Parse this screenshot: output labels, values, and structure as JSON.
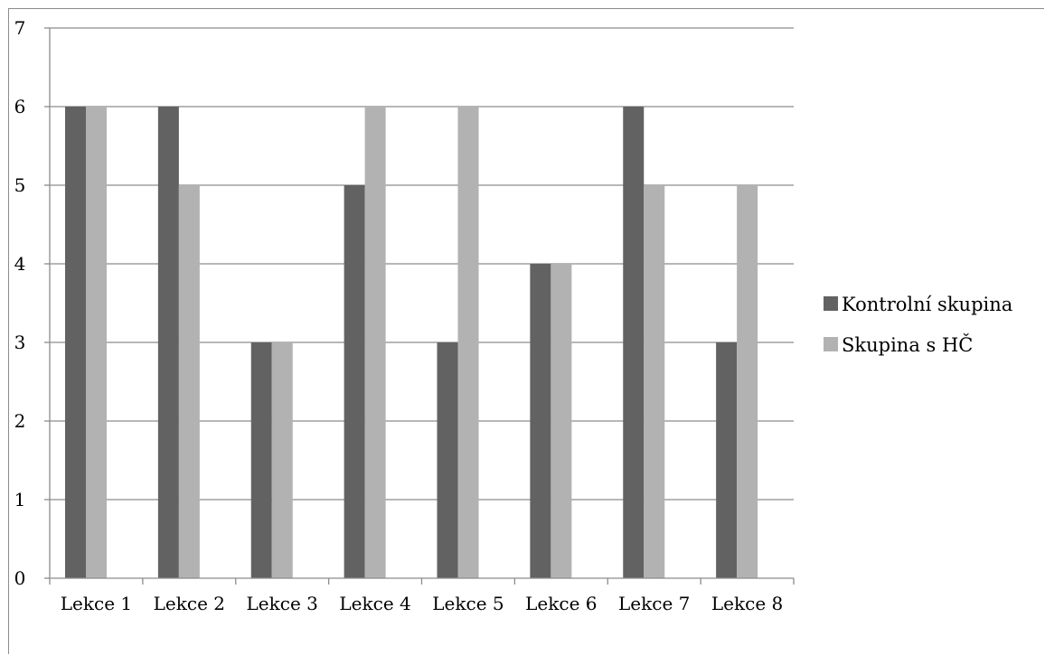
{
  "chart_data": {
    "type": "bar",
    "title": "",
    "xlabel": "",
    "ylabel": "",
    "categories": [
      "Lekce 1",
      "Lekce 2",
      "Lekce 3",
      "Lekce 4",
      "Lekce 5",
      "Lekce 6",
      "Lekce 7",
      "Lekce 8"
    ],
    "series": [
      {
        "name": "Kontrolní skupina",
        "values": [
          6,
          6,
          3,
          5,
          3,
          4,
          6,
          3
        ],
        "color": "#626262"
      },
      {
        "name": "Skupina s HČ",
        "values": [
          6,
          5,
          3,
          6,
          6,
          4,
          5,
          5
        ],
        "color": "#b2b2b2"
      }
    ],
    "ylim": [
      0,
      7
    ],
    "yticks": [
      "0",
      "1",
      "2",
      "3",
      "4",
      "5",
      "6",
      "7"
    ],
    "grid": true,
    "legend_position": "right"
  }
}
